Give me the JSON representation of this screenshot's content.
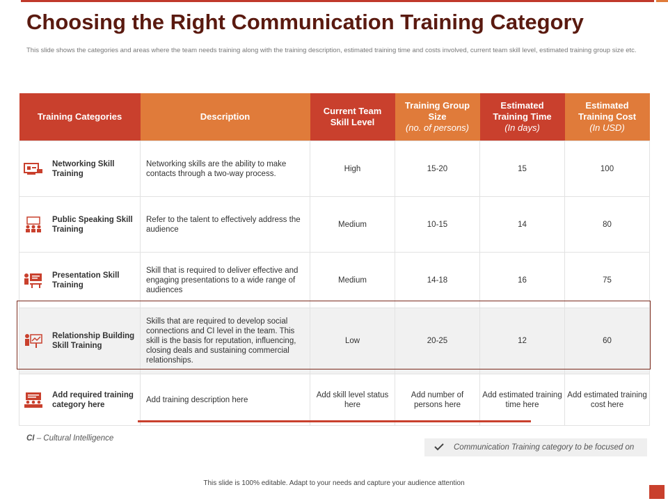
{
  "title": "Choosing the Right Communication Training Category",
  "subtitle": "This slide shows the categories and areas where the team needs training along with the training description, estimated training time and costs involved, current team skill level, estimated training group size etc.",
  "colors": {
    "red": "#c9402d",
    "orange": "#e07b3a",
    "title": "#5a1a10"
  },
  "table": {
    "headers": [
      {
        "label": "Training Categories",
        "sub": ""
      },
      {
        "label": "Description",
        "sub": ""
      },
      {
        "label": "Current Team Skill Level",
        "sub": ""
      },
      {
        "label": "Training Group Size",
        "sub": "(no. of persons)"
      },
      {
        "label": "Estimated Training Time",
        "sub": "(In days)"
      },
      {
        "label": "Estimated Training Cost",
        "sub": "(In USD)"
      }
    ],
    "rows": [
      {
        "icon": "networking-icon",
        "category": "Networking Skill Training",
        "description": "Networking skills are the ability to make contacts through a two-way process.",
        "skill": "High",
        "group": "15-20",
        "time": "15",
        "cost": "100"
      },
      {
        "icon": "public-speaking-icon",
        "category": "Public Speaking Skill Training",
        "description": "Refer to the talent to effectively address the audience",
        "skill": "Medium",
        "group": "10-15",
        "time": "14",
        "cost": "80"
      },
      {
        "icon": "presentation-icon",
        "category": "Presentation Skill Training",
        "description": "Skill that is required to deliver effective and engaging presentations to a wide range of audiences",
        "skill": "Medium",
        "group": "14-18",
        "time": "16",
        "cost": "75"
      },
      {
        "icon": "relationship-icon",
        "category": "Relationship Building Skill Training",
        "description": "Skills that are required to develop social connections and CI level in the team. This skill is the basis for reputation, influencing, closing deals and sustaining commercial relationships.",
        "skill": "Low",
        "group": "20-25",
        "time": "12",
        "cost": "60"
      },
      {
        "icon": "classroom-icon",
        "category": "Add required training category here",
        "description": "Add training description here",
        "skill": "Add skill level status here",
        "group": "Add number of persons here",
        "time": "Add estimated training time here",
        "cost": "Add estimated training cost here"
      }
    ]
  },
  "footnote": {
    "abbr": "CI",
    "text": " – Cultural Intelligence"
  },
  "legend": {
    "icon": "check-icon",
    "text": "Communication Training category to be focused on"
  },
  "bottom_note": "This slide is 100% editable. Adapt to your needs and capture your audience attention"
}
